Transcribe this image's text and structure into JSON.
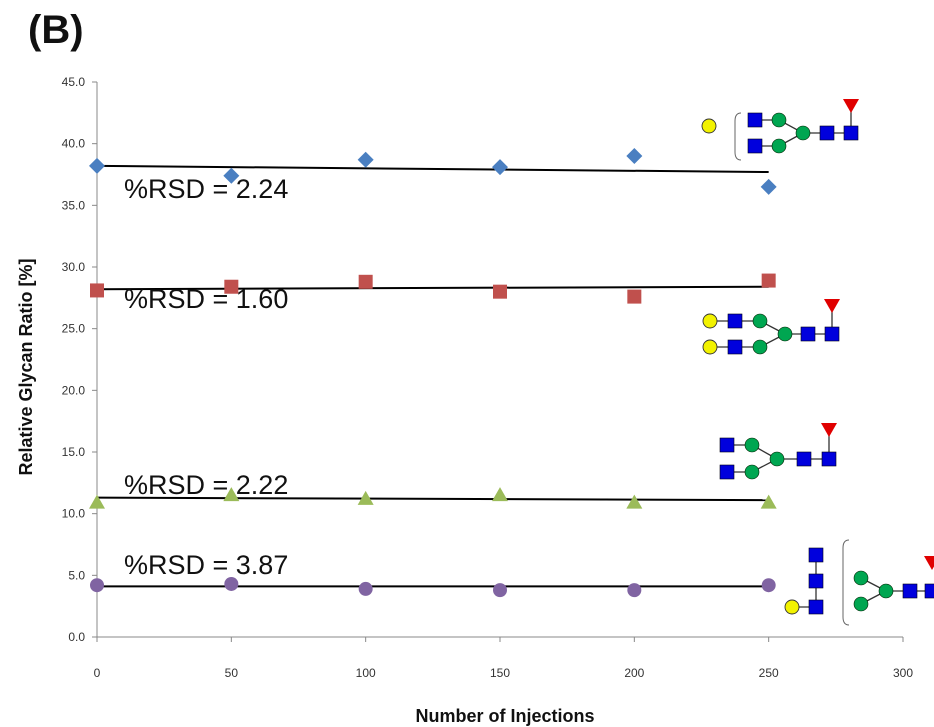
{
  "panel_label": "(B)",
  "chart_data": {
    "type": "scatter",
    "title": "",
    "xlabel": "Number of Injections",
    "ylabel": "Relative Glycan Ratio  [%]",
    "xlim": [
      0,
      300
    ],
    "ylim": [
      0,
      45
    ],
    "xticks": [
      "0",
      "50",
      "100",
      "150",
      "200",
      "250",
      "300"
    ],
    "yticks": [
      "0.0",
      "5.0",
      "10.0",
      "15.0",
      "20.0",
      "25.0",
      "30.0",
      "35.0",
      "40.0",
      "45.0"
    ],
    "grid": false,
    "legend": "none",
    "series": [
      {
        "marker": "diamond",
        "color": "#4a7fc1",
        "x": [
          0,
          50,
          100,
          150,
          200,
          250
        ],
        "y": [
          38.2,
          37.4,
          38.7,
          38.1,
          39.0,
          36.5
        ],
        "trend": [
          38.2,
          37.7
        ],
        "annotation": "%RSD = 2.24"
      },
      {
        "marker": "square",
        "color": "#c0504d",
        "x": [
          0,
          50,
          100,
          150,
          200,
          250
        ],
        "y": [
          28.1,
          28.4,
          28.8,
          28.0,
          27.6,
          28.9
        ],
        "trend": [
          28.2,
          28.4
        ],
        "annotation": "%RSD = 1.60"
      },
      {
        "marker": "triangle",
        "color": "#9bbb59",
        "x": [
          0,
          50,
          100,
          150,
          200,
          250
        ],
        "y": [
          10.9,
          11.5,
          11.2,
          11.5,
          10.9,
          10.9
        ],
        "trend": [
          11.3,
          11.1
        ],
        "annotation": "%RSD = 2.22"
      },
      {
        "marker": "circle",
        "color": "#8064a2",
        "x": [
          0,
          50,
          100,
          150,
          200,
          250
        ],
        "y": [
          4.2,
          4.3,
          3.9,
          3.8,
          3.8,
          4.2
        ],
        "trend": [
          4.1,
          4.1
        ],
        "annotation": "%RSD = 3.87"
      }
    ],
    "glycan_icons": [
      "glycan-structure-1",
      "glycan-structure-2",
      "glycan-structure-3",
      "glycan-structure-4"
    ]
  },
  "colors": {
    "glcnac": "#0000dd",
    "mannose": "#00a651",
    "galactose": "#f2f200",
    "fucose": "#e00000"
  }
}
